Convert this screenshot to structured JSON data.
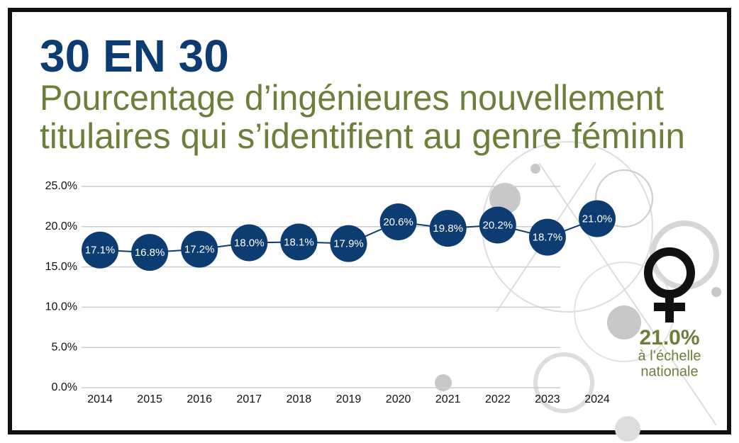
{
  "chart_data": {
    "type": "line",
    "title": "30 EN 30",
    "subtitle": [
      "Pourcentage d’ingénieures nouvellement",
      "titulaires qui s’identifient au genre féminin"
    ],
    "categories": [
      "2014",
      "2015",
      "2016",
      "2017",
      "2018",
      "2019",
      "2020",
      "2021",
      "2022",
      "2023",
      "2024"
    ],
    "series": [
      {
        "color": "#0d3c73",
        "values": [
          17.1,
          16.8,
          17.2,
          18.0,
          18.1,
          17.9,
          20.6,
          19.8,
          20.2,
          18.7,
          21.0
        ],
        "value_labels": [
          "17.1%",
          "16.8%",
          "17.2%",
          "18.0%",
          "18.1%",
          "17.9%",
          "20.6%",
          "19.8%",
          "20.2%",
          "18.7%",
          "21.0%"
        ]
      }
    ],
    "ylim": [
      0,
      25
    ],
    "yticks": [
      {
        "value": 0,
        "label": "0.0%"
      },
      {
        "value": 5,
        "label": "5.0%"
      },
      {
        "value": 10,
        "label": "10.0%"
      },
      {
        "value": 15,
        "label": "15.0%"
      },
      {
        "value": 20,
        "label": "20.0%"
      },
      {
        "value": 25,
        "label": "25.0%"
      }
    ],
    "grid": true,
    "annotation": [
      "21.0%",
      "à l’échelle",
      "nationale"
    ]
  }
}
